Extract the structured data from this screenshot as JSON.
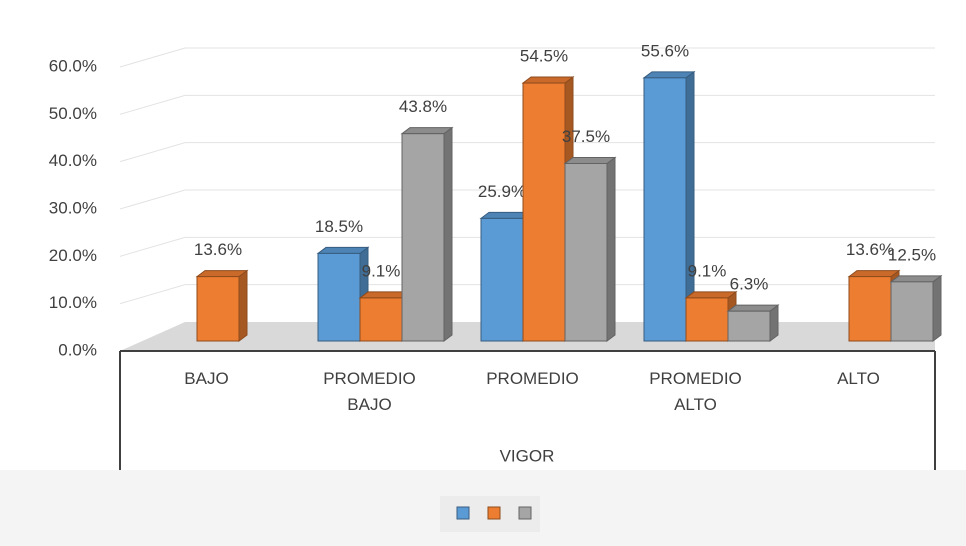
{
  "chart_data": {
    "type": "bar3d",
    "x_label": "VIGOR",
    "categories": [
      "BAJO",
      "PROMEDIO BAJO",
      "PROMEDIO",
      "PROMEDIO ALTO",
      "ALTO"
    ],
    "series": [
      {
        "color": "#5b9bd5",
        "values": [
          null,
          18.5,
          25.9,
          55.6,
          null
        ],
        "value_labels": [
          null,
          "18.5%",
          "25.9%",
          "55.6%",
          null
        ]
      },
      {
        "color": "#ed7d31",
        "values": [
          13.6,
          9.1,
          54.5,
          9.1,
          13.6
        ],
        "value_labels": [
          "13.6%",
          "9.1%",
          "54.5%",
          "9.1%",
          "13.6%"
        ]
      },
      {
        "color": "#a5a5a5",
        "values": [
          null,
          43.8,
          37.5,
          6.3,
          12.5
        ],
        "value_labels": [
          null,
          "43.8%",
          "37.5%",
          "6.3%",
          "12.5%"
        ]
      }
    ],
    "ylim": [
      0,
      60
    ],
    "yticks": [
      {
        "value": 0,
        "label": "0.0%"
      },
      {
        "value": 10,
        "label": "10.0%"
      },
      {
        "value": 20,
        "label": "20.0%"
      },
      {
        "value": 30,
        "label": "30.0%"
      },
      {
        "value": 40,
        "label": "40.0%"
      },
      {
        "value": 50,
        "label": "50.0%"
      },
      {
        "value": 60,
        "label": "60.0%"
      }
    ],
    "grid": true
  }
}
